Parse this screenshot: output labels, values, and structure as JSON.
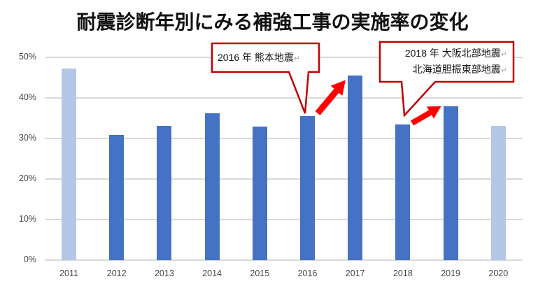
{
  "title": "耐震診断年別にみる補強工事の実施率の変化",
  "colors": {
    "dark_bar": "#4472c4",
    "light_bar": "#b4c7e7",
    "callout_border": "#c00000",
    "arrow": "#ff0000",
    "grid": "#d9d9d9"
  },
  "y_axis": {
    "ticks": [
      "0%",
      "10%",
      "20%",
      "30%",
      "40%",
      "50%"
    ]
  },
  "x_axis": {
    "ticks": [
      "2011",
      "2012",
      "2013",
      "2014",
      "2015",
      "2016",
      "2017",
      "2018",
      "2019",
      "2020"
    ]
  },
  "callouts": [
    {
      "line1": "2016 年  熊本地震",
      "line1_mark": "↵"
    },
    {
      "line1": "2018 年  大阪北部地震",
      "line1_mark": "↵",
      "line2": "北海道胆振東部地震",
      "line2_mark": "↵"
    }
  ],
  "chart_data": {
    "type": "bar",
    "title": "耐震診断年別にみる補強工事の実施率の変化",
    "xlabel": "",
    "ylabel": "",
    "ylim": [
      0,
      50
    ],
    "y_ticks": [
      "0%",
      "10%",
      "20%",
      "30%",
      "40%",
      "50%"
    ],
    "grid": true,
    "legend": null,
    "categories": [
      "2011",
      "2012",
      "2013",
      "2014",
      "2015",
      "2016",
      "2017",
      "2018",
      "2019",
      "2020"
    ],
    "values": [
      47.2,
      30.9,
      33.1,
      36.2,
      33.0,
      35.5,
      45.5,
      33.4,
      37.9,
      33.1
    ],
    "bar_styles": [
      "light",
      "dark",
      "dark",
      "dark",
      "dark",
      "dark",
      "dark",
      "dark",
      "dark",
      "light"
    ],
    "annotations": [
      {
        "at": "2016",
        "text": "2016 年 熊本地震",
        "arrow_to": "2017"
      },
      {
        "at": "2018",
        "text": "2018 年 大阪北部地震 / 北海道胆振東部地震",
        "arrow_to": "2019"
      }
    ]
  }
}
